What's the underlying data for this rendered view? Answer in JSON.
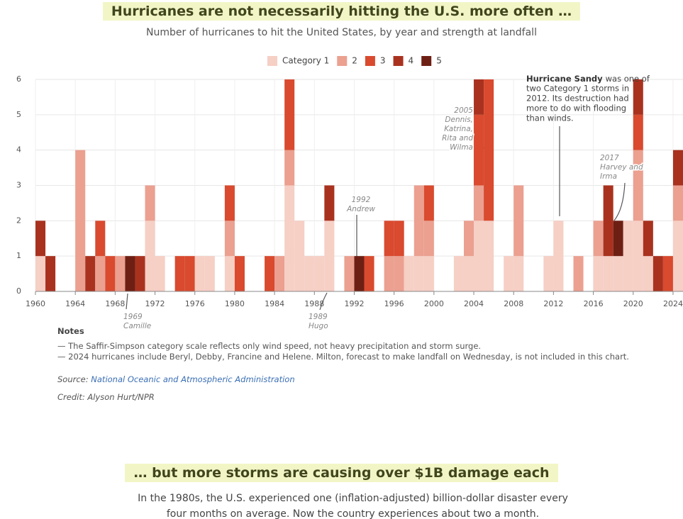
{
  "chart_data": {
    "type": "stacked-bar",
    "title": "Hurricanes are not necessarily hitting the U.S. more often …",
    "subtitle": "Number of hurricanes to hit the United States, by year and strength at landfall",
    "x": [
      1960,
      1961,
      1962,
      1963,
      1964,
      1965,
      1966,
      1967,
      1968,
      1969,
      1970,
      1971,
      1972,
      1973,
      1974,
      1975,
      1976,
      1977,
      1978,
      1979,
      1980,
      1981,
      1982,
      1983,
      1984,
      1985,
      1986,
      1987,
      1988,
      1989,
      1990,
      1991,
      1992,
      1993,
      1994,
      1995,
      1996,
      1997,
      1998,
      1999,
      2000,
      2001,
      2002,
      2003,
      2004,
      2005,
      2006,
      2007,
      2008,
      2009,
      2010,
      2011,
      2012,
      2013,
      2014,
      2015,
      2016,
      2017,
      2018,
      2019,
      2020,
      2021,
      2022,
      2023,
      2024
    ],
    "series": [
      {
        "name": "Category 1",
        "color": "#f6cfc5",
        "values": [
          1,
          0,
          0,
          0,
          0,
          0,
          0,
          0,
          0,
          0,
          0,
          2,
          1,
          0,
          0,
          0,
          1,
          1,
          0,
          1,
          0,
          0,
          0,
          0,
          0,
          3,
          2,
          1,
          1,
          2,
          0,
          0,
          0,
          0,
          0,
          0,
          0,
          1,
          1,
          1,
          0,
          0,
          1,
          1,
          2,
          2,
          0,
          1,
          1,
          0,
          0,
          1,
          2,
          0,
          0,
          0,
          1,
          1,
          1,
          2,
          2,
          1,
          0,
          0,
          2
        ]
      },
      {
        "name": "2",
        "color": "#eba090",
        "values": [
          0,
          0,
          0,
          0,
          4,
          0,
          1,
          0,
          1,
          0,
          0,
          1,
          0,
          0,
          0,
          0,
          0,
          0,
          0,
          1,
          0,
          0,
          0,
          0,
          1,
          1,
          0,
          0,
          0,
          0,
          0,
          1,
          0,
          0,
          0,
          1,
          1,
          0,
          2,
          1,
          0,
          0,
          0,
          1,
          1,
          0,
          0,
          0,
          2,
          0,
          0,
          0,
          0,
          0,
          1,
          0,
          1,
          0,
          0,
          0,
          2,
          0,
          0,
          0,
          1
        ]
      },
      {
        "name": "3",
        "color": "#d94a2f",
        "values": [
          0,
          0,
          0,
          0,
          0,
          0,
          1,
          1,
          0,
          0,
          0,
          0,
          0,
          0,
          1,
          1,
          0,
          0,
          0,
          1,
          1,
          0,
          0,
          1,
          0,
          2,
          0,
          0,
          0,
          0,
          0,
          0,
          0,
          1,
          0,
          1,
          1,
          0,
          0,
          1,
          0,
          0,
          0,
          0,
          2,
          4,
          0,
          0,
          0,
          0,
          0,
          0,
          0,
          0,
          0,
          0,
          0,
          0,
          0,
          0,
          1,
          0,
          0,
          1,
          0
        ]
      },
      {
        "name": "4",
        "color": "#a9321f",
        "values": [
          1,
          1,
          0,
          0,
          0,
          1,
          0,
          0,
          0,
          0,
          1,
          0,
          0,
          0,
          0,
          0,
          0,
          0,
          0,
          0,
          0,
          0,
          0,
          0,
          0,
          0,
          0,
          0,
          0,
          1,
          0,
          0,
          0,
          0,
          0,
          0,
          0,
          0,
          0,
          0,
          0,
          0,
          0,
          0,
          1,
          0,
          0,
          0,
          0,
          0,
          0,
          0,
          0,
          0,
          0,
          0,
          0,
          2,
          0,
          0,
          1,
          1,
          1,
          0,
          1
        ]
      },
      {
        "name": "5",
        "color": "#6e1f14",
        "values": [
          0,
          0,
          0,
          0,
          0,
          0,
          0,
          0,
          0,
          1,
          0,
          0,
          0,
          0,
          0,
          0,
          0,
          0,
          0,
          0,
          0,
          0,
          0,
          0,
          0,
          0,
          0,
          0,
          0,
          0,
          0,
          0,
          1,
          0,
          0,
          0,
          0,
          0,
          0,
          0,
          0,
          0,
          0,
          0,
          0,
          0,
          0,
          0,
          0,
          0,
          0,
          0,
          0,
          0,
          0,
          0,
          0,
          0,
          1,
          0,
          0,
          0,
          0,
          0,
          0
        ]
      }
    ],
    "xlim": [
      1960,
      2025
    ],
    "xticks": [
      1960,
      1964,
      1968,
      1972,
      1976,
      1980,
      1984,
      1988,
      1992,
      1996,
      2000,
      2004,
      2008,
      2012,
      2016,
      2020,
      2024
    ],
    "ylim": [
      0,
      6
    ],
    "yticks": [
      0,
      1,
      2,
      3,
      4,
      5,
      6
    ],
    "grid": true,
    "legend": "top",
    "annotations": [
      {
        "lines": [
          "1969",
          "Camille"
        ]
      },
      {
        "lines": [
          "1989",
          "Hugo"
        ]
      },
      {
        "lines": [
          "1992",
          "Andrew"
        ]
      },
      {
        "lines": [
          "2005",
          "Dennis,",
          "Katrina,",
          "Rita and",
          "Wilma"
        ]
      },
      {
        "bold": "Hurricane Sandy",
        "lines": [
          "was one of",
          "two Category 1 storms in",
          "2012. Its destruction had",
          "more to do with flooding",
          "than winds."
        ]
      },
      {
        "lines": [
          "2017",
          "Harvey and",
          "Irma"
        ]
      }
    ]
  },
  "notes": {
    "title": "Notes",
    "items": [
      "— The Saffir-Simpson category scale reflects only wind speed, not heavy precipitation and storm surge.",
      "— 2024 hurricanes include Beryl, Debby, Francine and Helene. Milton, forecast to make landfall on Wednesday, is not included in this chart."
    ]
  },
  "source": {
    "label": "Source:",
    "link": "National Oceanic and Atmospheric Administration"
  },
  "credit": "Credit: Alyson Hurt/NPR",
  "section2": {
    "title": "… but more storms are causing over $1B damage each",
    "text": "In the 1980s, the U.S. experienced one (inflation-adjusted) billion-dollar disaster every four months on average. Now the country experiences about two a month."
  }
}
